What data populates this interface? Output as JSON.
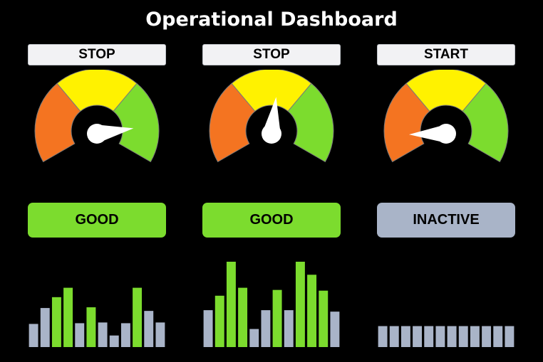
{
  "title": "Operational Dashboard",
  "colors": {
    "background": "#000000",
    "gauge_red": "#F47421",
    "gauge_yellow": "#FFF200",
    "gauge_green": "#7CDC2E",
    "good": "#7CDC2E",
    "inactive": "#A9B4C8",
    "bar_green": "#7CDC2E",
    "bar_gray": "#A9B4C8"
  },
  "panels": [
    {
      "control_label": "STOP",
      "gauge_value": 0.84,
      "status_label": "GOOD",
      "status_kind": "good",
      "bar_chart": {
        "values": [
          32,
          54,
          69,
          82,
          33,
          55,
          34,
          16,
          33,
          82,
          50,
          34
        ],
        "highlight": [
          false,
          false,
          true,
          true,
          false,
          true,
          false,
          false,
          false,
          true,
          false,
          false
        ]
      }
    },
    {
      "control_label": "STOP",
      "gauge_value": 0.53,
      "status_label": "GOOD",
      "status_kind": "good",
      "bar_chart": {
        "values": [
          51,
          71,
          118,
          82,
          25,
          51,
          79,
          51,
          118,
          100,
          78,
          49
        ],
        "highlight": [
          false,
          true,
          true,
          true,
          false,
          false,
          true,
          false,
          true,
          true,
          true,
          false
        ]
      }
    },
    {
      "control_label": "START",
      "gauge_value": 0.12,
      "status_label": "INACTIVE",
      "status_kind": "inactive",
      "bar_chart": {
        "values": [
          29,
          29,
          29,
          29,
          29,
          29,
          29,
          29,
          29,
          29,
          29,
          29
        ],
        "highlight": [
          false,
          false,
          false,
          false,
          false,
          false,
          false,
          false,
          false,
          false,
          false,
          false
        ]
      }
    }
  ]
}
